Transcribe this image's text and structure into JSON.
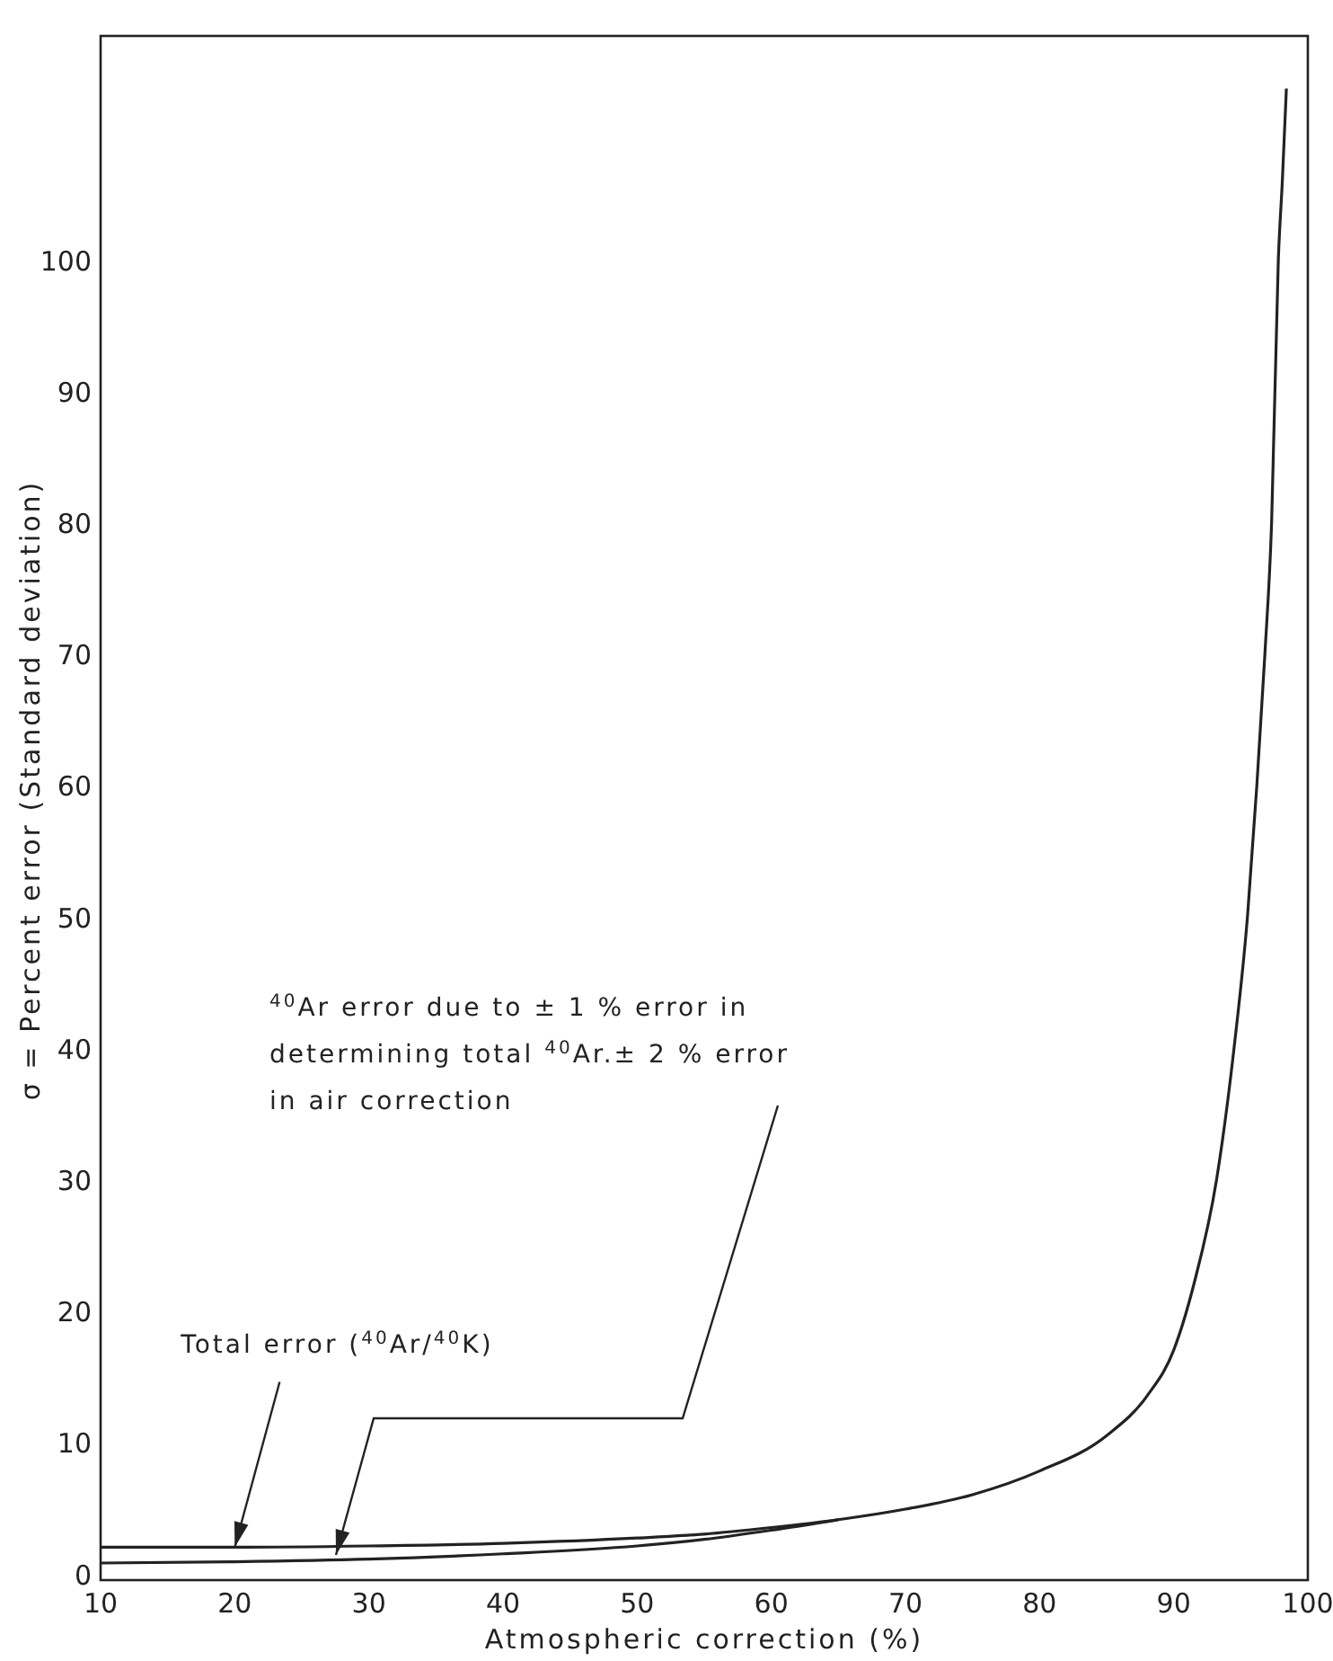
{
  "chart_data": {
    "type": "line",
    "xlabel": "Atmospheric correction (%)",
    "ylabel": "σ = Percent error  (Standard deviation)",
    "xlim": [
      10,
      100
    ],
    "ylim": [
      -0.5,
      117
    ],
    "xticks": [
      10,
      20,
      30,
      40,
      50,
      60,
      70,
      80,
      90,
      100
    ],
    "yticks": [
      0,
      10,
      20,
      30,
      40,
      50,
      60,
      70,
      80,
      90,
      100
    ],
    "grid": false,
    "marker": "none",
    "line_style": "solid",
    "series": [
      {
        "color": "#222222",
        "x": [
          10,
          20,
          30,
          40,
          50,
          55,
          60,
          65,
          70,
          75,
          80,
          85,
          88,
          90,
          91.5,
          93.2,
          94.5,
          95.5,
          96.2,
          96.8,
          97.3,
          97.8,
          98.1,
          98.4
        ],
        "values": [
          2.0,
          2.0,
          2.1,
          2.3,
          2.7,
          3.0,
          3.5,
          4.1,
          4.9,
          6.0,
          7.8,
          10.5,
          13.5,
          17,
          22,
          30,
          40,
          50,
          60,
          70,
          80,
          100,
          106,
          113
        ]
      },
      {
        "color": "#222222",
        "x": [
          10,
          20,
          30,
          40,
          50,
          55,
          60,
          65
        ],
        "values": [
          0.8,
          0.9,
          1.1,
          1.5,
          2.1,
          2.6,
          3.3,
          4.1
        ]
      }
    ],
    "annotations": [
      {
        "text": "Total error ($^{40}$Ar/$^{40}$K)",
        "x": 20,
        "y": 2.0
      },
      "$^{40}$Ar error due to ± 1 % error in determining total $^{40}$Ar.± 2 % error in air correction"
    ]
  }
}
